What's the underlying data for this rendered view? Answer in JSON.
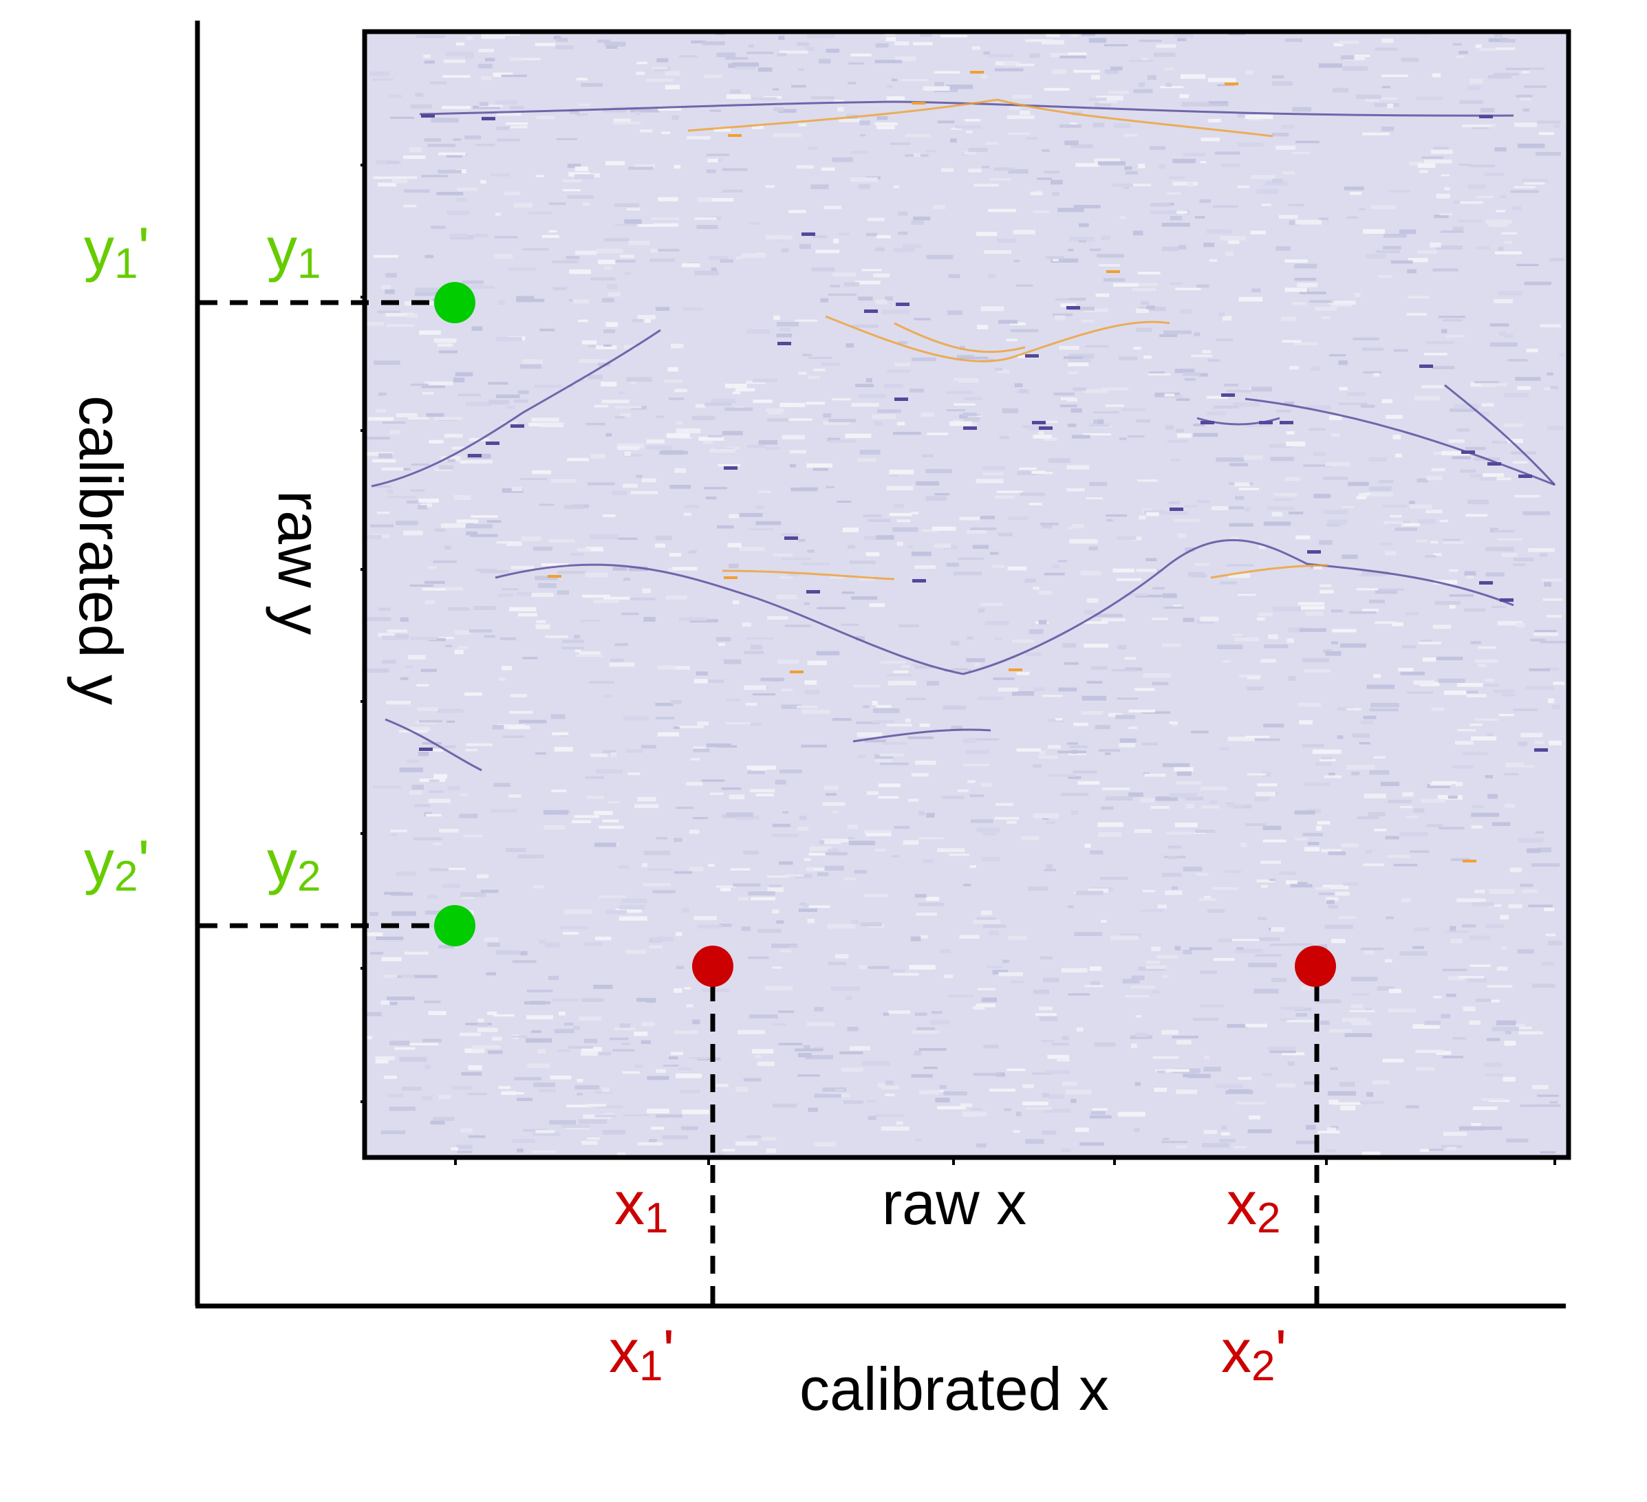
{
  "labels": {
    "raw_x": "raw x",
    "raw_y": "raw y",
    "calibrated_x": "calibrated x",
    "calibrated_y": "calibrated y"
  },
  "points": {
    "x1": {
      "base": "x",
      "sub": "1",
      "prime": ""
    },
    "x2": {
      "base": "x",
      "sub": "2",
      "prime": ""
    },
    "x1p": {
      "base": "x",
      "sub": "1",
      "prime": "'"
    },
    "x2p": {
      "base": "x",
      "sub": "2",
      "prime": "'"
    },
    "y1": {
      "base": "y",
      "sub": "1",
      "prime": ""
    },
    "y2": {
      "base": "y",
      "sub": "2",
      "prime": ""
    },
    "y1p": {
      "base": "y",
      "sub": "1",
      "prime": "'"
    },
    "y2p": {
      "base": "y",
      "sub": "2",
      "prime": "'"
    }
  },
  "colors": {
    "x_color": "#cc0000",
    "y_label_color": "#66cc00",
    "y_marker_color": "#00cc00",
    "image_background": "#dcdcee",
    "image_streak_dark": "#55479a",
    "image_streak_orange": "#f0a030",
    "axis_color": "#000000"
  }
}
